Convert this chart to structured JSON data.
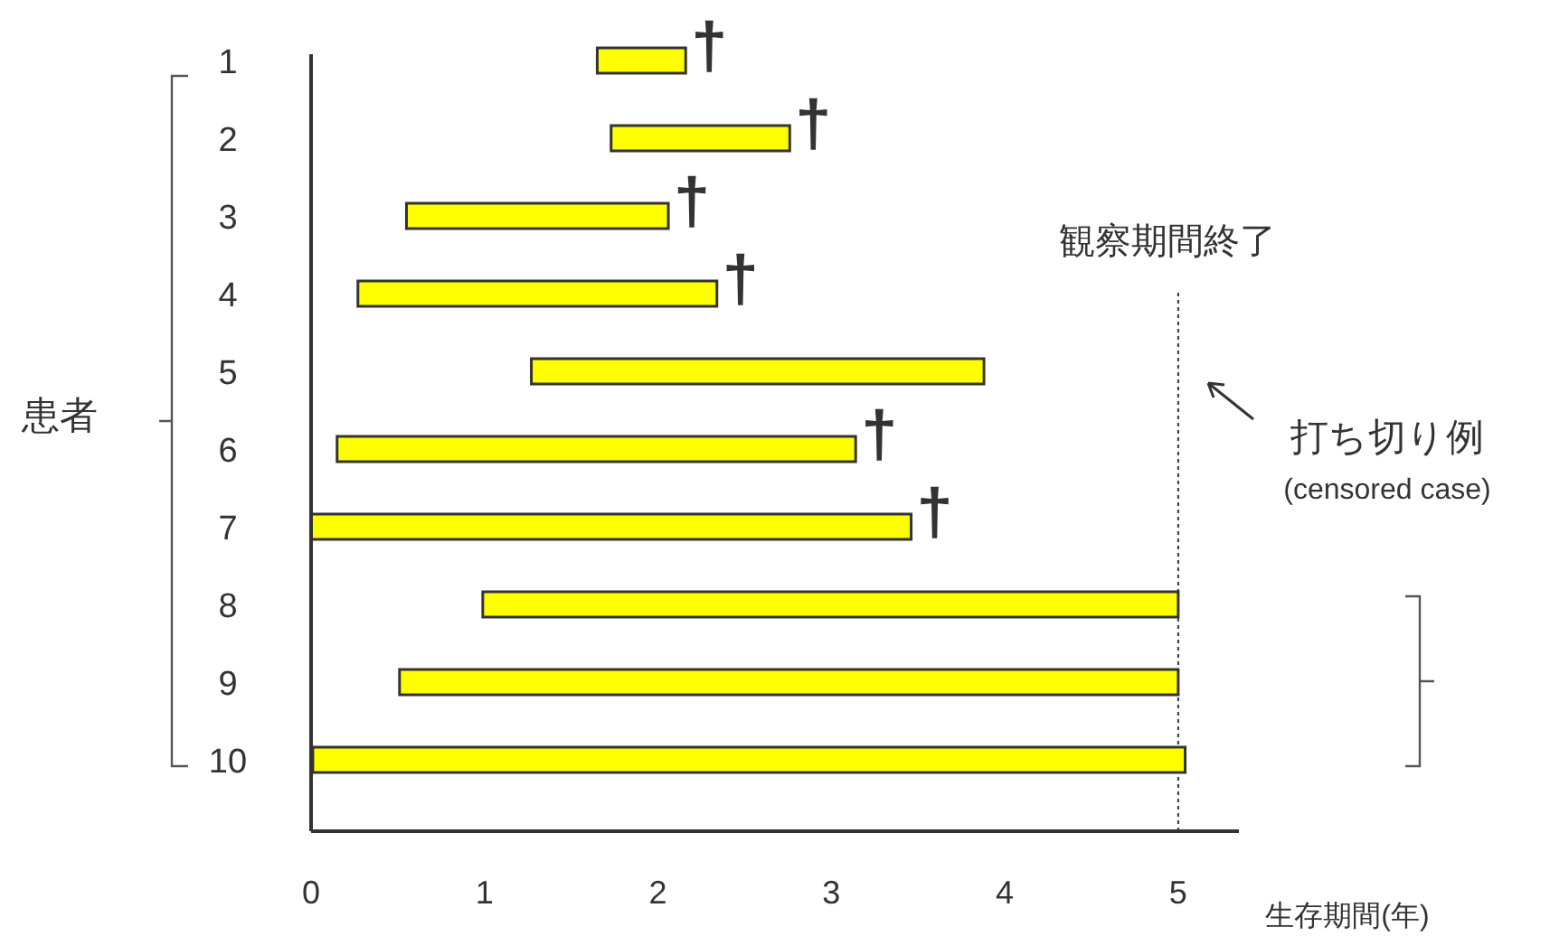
{
  "chart_data": {
    "type": "bar",
    "orientation": "horizontal",
    "xlabel": "生存期間(年)",
    "ylabel": "患者",
    "categories": [
      "1",
      "2",
      "3",
      "4",
      "5",
      "6",
      "7",
      "8",
      "9",
      "10"
    ],
    "base": [
      1.65,
      1.73,
      0.55,
      0.27,
      1.27,
      0.15,
      0,
      0.99,
      0.51,
      0.01
    ],
    "values": [
      0.51,
      1.03,
      1.51,
      2.07,
      2.61,
      2.99,
      3.46,
      4.01,
      4.49,
      5.03
    ],
    "color": "#ffff00",
    "xlim": [
      0,
      5.35
    ],
    "xticks": [
      0,
      1,
      2,
      3,
      4,
      5
    ],
    "ref_lines": [
      {
        "axis": "x",
        "value": 5,
        "label": "観察期間終了",
        "line_style": "dotted",
        "color": "#333333"
      }
    ],
    "annotations": [
      {
        "text": "†",
        "x": 2.16,
        "y": "1"
      },
      {
        "text": "†",
        "x": 2.76,
        "y": "2"
      },
      {
        "text": "†",
        "x": 2.06,
        "y": "3"
      },
      {
        "text": "†",
        "x": 2.34,
        "y": "4"
      },
      {
        "text": "†",
        "x": 3.14,
        "y": "6"
      },
      {
        "text": "†",
        "x": 3.46,
        "y": "7"
      },
      "打ち切り例",
      "(censored case)"
    ],
    "grid": false
  }
}
